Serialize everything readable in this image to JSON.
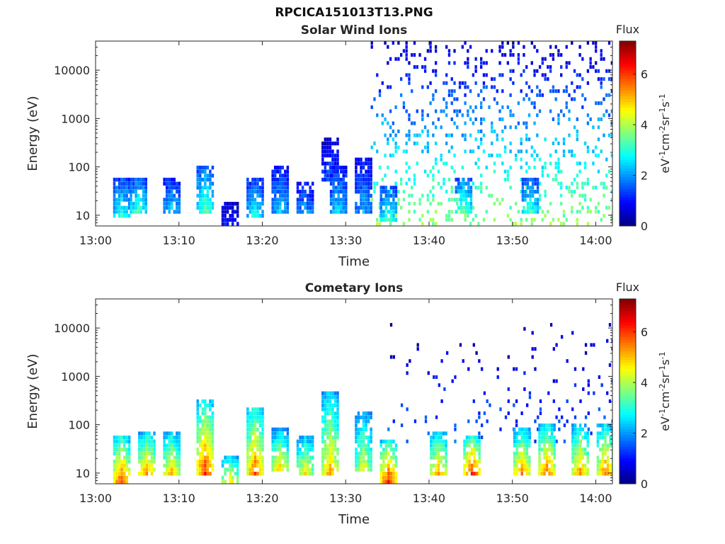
{
  "figure": {
    "filename": "RPCICA151013T13.PNG"
  },
  "chart_data": [
    {
      "type": "heatmap",
      "title": "Solar Wind Ions",
      "xlabel": "Time",
      "ylabel": "Energy (eV)",
      "x_ticks": [
        "13:00",
        "13:10",
        "13:20",
        "13:30",
        "13:40",
        "13:50",
        "14:00"
      ],
      "xlim": [
        "13:00",
        "14:02"
      ],
      "y_scale": "log",
      "y_ticks": [
        10,
        100,
        1000,
        10000
      ],
      "y_tick_labels": [
        "10",
        "100",
        "1000",
        "10000"
      ],
      "ylim": [
        6,
        40000
      ],
      "colorbar": {
        "label": "Flux",
        "unit": "eV-1cm-2sr-1s-1",
        "ticks": [
          0,
          2,
          4,
          6
        ],
        "range": [
          0,
          7.3
        ]
      },
      "bursts": [
        {
          "t": "13:03",
          "e": [
            8,
            60
          ],
          "level": 3.2
        },
        {
          "t": "13:05",
          "e": [
            10,
            60
          ],
          "level": 3.5
        },
        {
          "t": "13:09",
          "e": [
            10,
            60
          ],
          "level": 2.6
        },
        {
          "t": "13:13",
          "e": [
            10,
            110
          ],
          "level": 3.6
        },
        {
          "t": "13:16",
          "e": [
            6,
            20
          ],
          "level": 1.2
        },
        {
          "t": "13:19",
          "e": [
            9,
            60
          ],
          "level": 3.0
        },
        {
          "t": "13:22",
          "e": [
            10,
            110
          ],
          "level": 2.4
        },
        {
          "t": "13:25",
          "e": [
            10,
            50
          ],
          "level": 2.2
        },
        {
          "t": "13:28",
          "e": [
            50,
            380
          ],
          "level": 1.6
        },
        {
          "t": "13:29",
          "e": [
            10,
            100
          ],
          "level": 2.6
        },
        {
          "t": "13:32",
          "e": [
            10,
            150
          ],
          "level": 2.2
        },
        {
          "t": "13:35",
          "e": [
            7,
            40
          ],
          "level": 3.4
        },
        {
          "t": "13:44",
          "e": [
            10,
            60
          ],
          "level": 3.8
        },
        {
          "t": "13:52",
          "e": [
            10,
            60
          ],
          "level": 3.4
        }
      ],
      "scatter_region": {
        "t": [
          "13:33",
          "14:02"
        ],
        "e": [
          6,
          40000
        ],
        "level": [
          0.5,
          3.8
        ]
      }
    },
    {
      "type": "heatmap",
      "title": "Cometary Ions",
      "xlabel": "Time",
      "ylabel": "Energy (eV)",
      "x_ticks": [
        "13:00",
        "13:10",
        "13:20",
        "13:30",
        "13:40",
        "13:50",
        "14:00"
      ],
      "xlim": [
        "13:00",
        "14:02"
      ],
      "y_scale": "log",
      "y_ticks": [
        10,
        100,
        1000,
        10000
      ],
      "y_tick_labels": [
        "10",
        "100",
        "1000",
        "10000"
      ],
      "ylim": [
        6,
        40000
      ],
      "colorbar": {
        "label": "Flux",
        "unit": "eV-1cm-2sr-1s-1",
        "ticks": [
          0,
          2,
          4,
          6
        ],
        "range": [
          0,
          7.3
        ]
      },
      "bursts": [
        {
          "t": "13:03",
          "e": [
            6,
            60
          ],
          "level": 6.2
        },
        {
          "t": "13:06",
          "e": [
            8,
            70
          ],
          "level": 5.8
        },
        {
          "t": "13:09",
          "e": [
            8,
            70
          ],
          "level": 5.4
        },
        {
          "t": "13:13",
          "e": [
            8,
            350
          ],
          "level": 6.3
        },
        {
          "t": "13:16",
          "e": [
            6,
            25
          ],
          "level": 5.0
        },
        {
          "t": "13:19",
          "e": [
            8,
            250
          ],
          "level": 6.0
        },
        {
          "t": "13:22",
          "e": [
            10,
            80
          ],
          "level": 5.2
        },
        {
          "t": "13:25",
          "e": [
            8,
            60
          ],
          "level": 5.0
        },
        {
          "t": "13:28",
          "e": [
            8,
            500
          ],
          "level": 5.4
        },
        {
          "t": "13:32",
          "e": [
            10,
            200
          ],
          "level": 4.6
        },
        {
          "t": "13:35",
          "e": [
            6,
            50
          ],
          "level": 6.4
        },
        {
          "t": "13:41",
          "e": [
            8,
            70
          ],
          "level": 5.6
        },
        {
          "t": "13:45",
          "e": [
            8,
            60
          ],
          "level": 6.6
        },
        {
          "t": "13:51",
          "e": [
            8,
            80
          ],
          "level": 5.8
        },
        {
          "t": "13:54",
          "e": [
            8,
            100
          ],
          "level": 6.0
        },
        {
          "t": "13:58",
          "e": [
            8,
            100
          ],
          "level": 5.6
        },
        {
          "t": "14:01",
          "e": [
            8,
            100
          ],
          "level": 5.8
        }
      ],
      "scatter_region": {
        "t": [
          "13:35",
          "14:02"
        ],
        "e": [
          40,
          12000
        ],
        "level": [
          0.3,
          1.6
        ]
      }
    }
  ]
}
